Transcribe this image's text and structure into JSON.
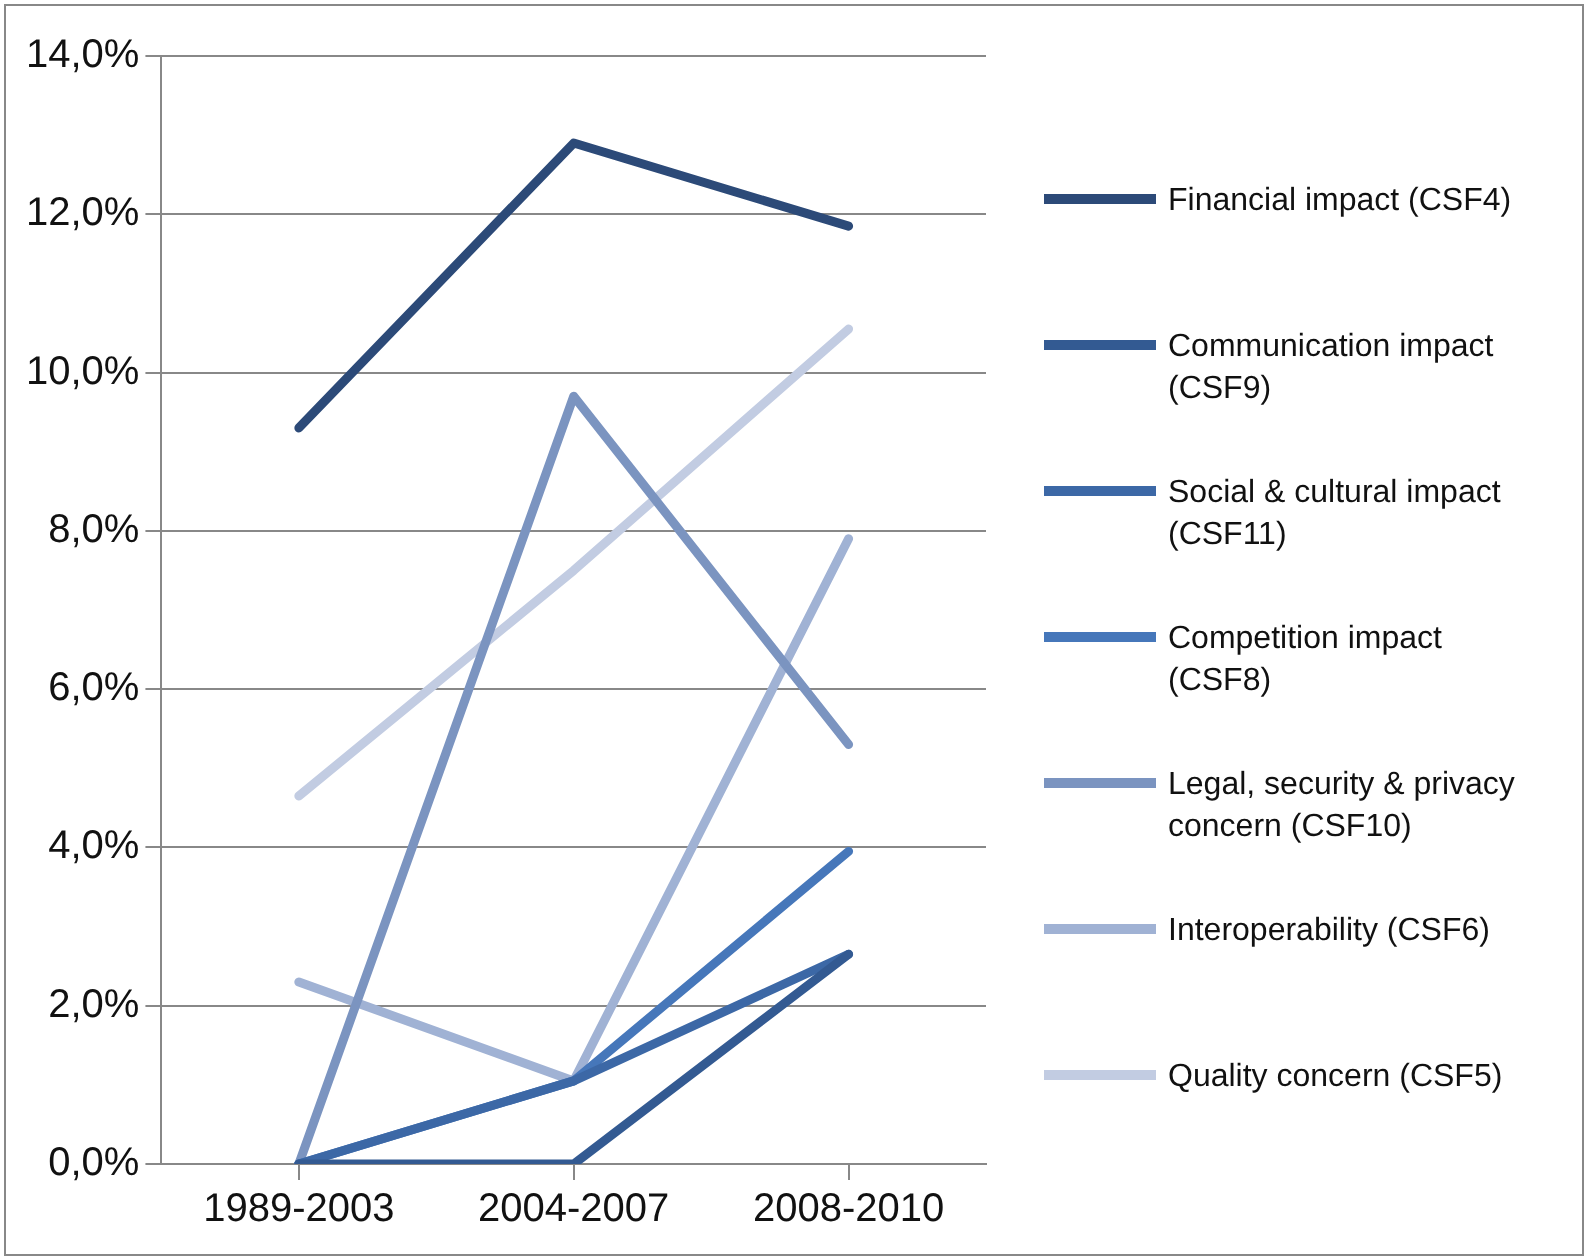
{
  "chart_data": {
    "type": "line",
    "categories": [
      "1989-2003",
      "2004-2007",
      "2008-2010"
    ],
    "series": [
      {
        "name": "Financial impact (CSF4)",
        "color": "#2c4a78",
        "values": [
          9.3,
          12.9,
          11.85
        ]
      },
      {
        "name": "Communication impact (CSF9)",
        "color": "#335a92",
        "values": [
          0,
          0,
          2.65
        ]
      },
      {
        "name": "Social & cultural impact (CSF11)",
        "color": "#3c68a6",
        "values": [
          0,
          1.05,
          2.65
        ]
      },
      {
        "name": "Competition impact (CSF8)",
        "color": "#4677ba",
        "values": [
          0,
          1.05,
          3.95
        ]
      },
      {
        "name": "Legal, security & privacy concern (CSF10)",
        "color": "#7b94c0",
        "values": [
          0,
          9.7,
          5.3
        ]
      },
      {
        "name": "Interoperability (CSF6)",
        "color": "#a0b2d4",
        "values": [
          2.3,
          1.05,
          7.9
        ]
      },
      {
        "name": "Quality concern (CSF5)",
        "color": "#c2cce2",
        "values": [
          4.65,
          7.5,
          10.55
        ]
      }
    ],
    "ylim": [
      0,
      14
    ],
    "yticks": [
      {
        "value": 0,
        "label": "0,0%"
      },
      {
        "value": 2,
        "label": "2,0%"
      },
      {
        "value": 4,
        "label": "4,0%"
      },
      {
        "value": 6,
        "label": "6,0%"
      },
      {
        "value": 8,
        "label": "8,0%"
      },
      {
        "value": 10,
        "label": "10,0%"
      },
      {
        "value": 12,
        "label": "12,0%"
      },
      {
        "value": 14,
        "label": "14,0%"
      }
    ],
    "grid": "y",
    "legend": "right",
    "marker": "none",
    "line_style": "solid"
  }
}
